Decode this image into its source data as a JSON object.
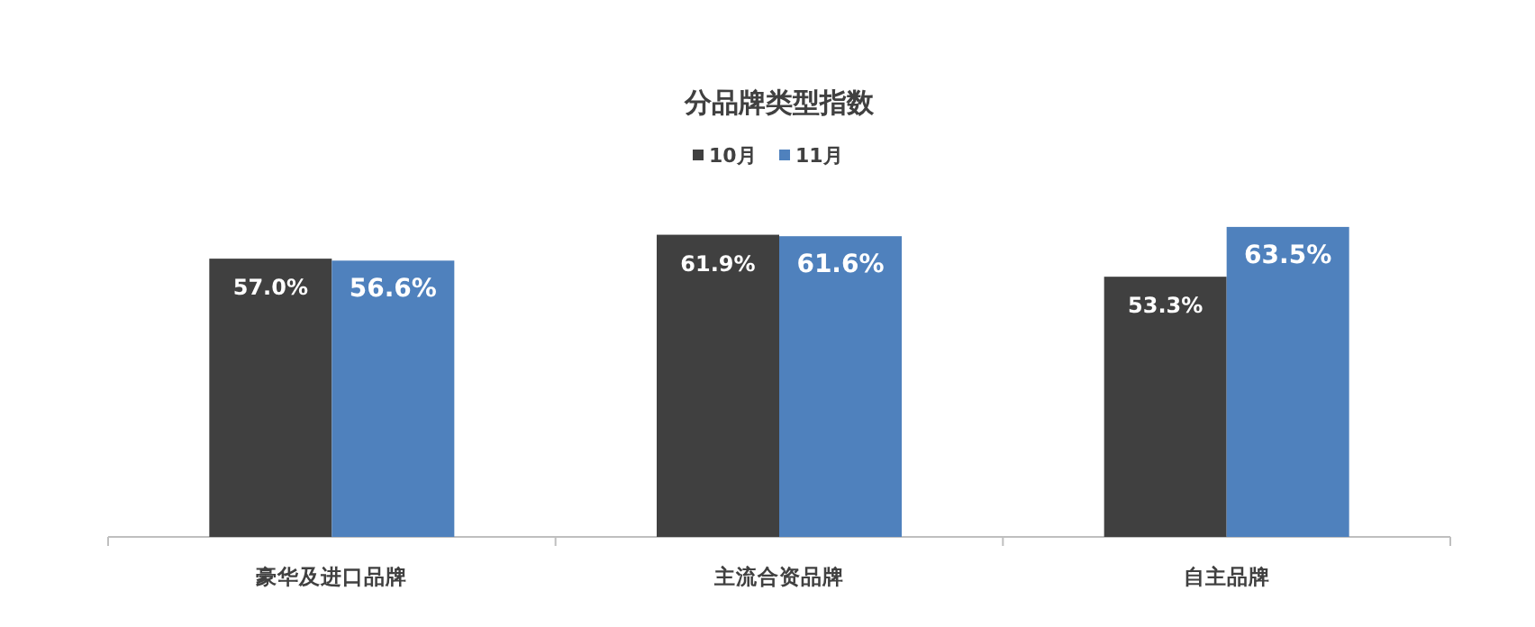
{
  "chart_data": {
    "type": "bar",
    "title": "分品牌类型指数",
    "categories": [
      "豪华及进口品牌",
      "主流合资品牌",
      "自主品牌"
    ],
    "series": [
      {
        "name": "10月",
        "color": "#404040",
        "values": [
          57.0,
          61.9,
          53.3
        ],
        "value_labels": [
          "57.0%",
          "61.9%",
          "53.3%"
        ]
      },
      {
        "name": "11月",
        "color": "#4f81bd",
        "values": [
          56.6,
          61.6,
          63.5
        ],
        "value_labels": [
          "56.6%",
          "61.6%",
          "63.5%"
        ]
      }
    ],
    "legend": "top"
  }
}
